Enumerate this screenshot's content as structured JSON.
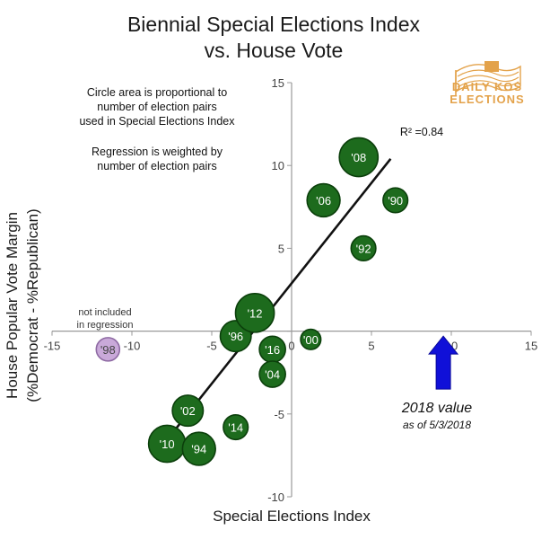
{
  "chart_data": {
    "type": "scatter",
    "title": [
      "Biennial Special Elections Index",
      "vs. House Vote"
    ],
    "xlabel": "Special Elections Index",
    "ylabel": [
      "House Popular Vote Margin",
      "(%Democrat - %Republican)"
    ],
    "xlim": [
      -15,
      15
    ],
    "ylim": [
      -10,
      15
    ],
    "x_ticks": [
      -15,
      -10,
      -5,
      0,
      5,
      10,
      15
    ],
    "y_ticks": [
      -10,
      -5,
      0,
      5,
      10,
      15
    ],
    "x_tick_labels": [
      "-15",
      "-10",
      "-5",
      "0",
      "5",
      "10",
      "15"
    ],
    "y_tick_labels": [
      "-10",
      "-5",
      "",
      "5",
      "10",
      "15"
    ],
    "points": [
      {
        "label": "'98",
        "x": -11.5,
        "y": -1.1,
        "weight": 4,
        "included": false
      },
      {
        "label": "'96",
        "x": -3.5,
        "y": -0.3,
        "weight": 7,
        "included": true
      },
      {
        "label": "'12",
        "x": -2.3,
        "y": 1.1,
        "weight": 11,
        "included": true
      },
      {
        "label": "'16",
        "x": -1.2,
        "y": -1.1,
        "weight": 5,
        "included": true
      },
      {
        "label": "'04",
        "x": -1.2,
        "y": -2.6,
        "weight": 5,
        "included": true
      },
      {
        "label": "'00",
        "x": 1.2,
        "y": -0.5,
        "weight": 3,
        "included": true
      },
      {
        "label": "'02",
        "x": -6.5,
        "y": -4.8,
        "weight": 7,
        "included": true
      },
      {
        "label": "'14",
        "x": -3.5,
        "y": -5.8,
        "weight": 4.5,
        "included": true
      },
      {
        "label": "'10",
        "x": -7.8,
        "y": -6.8,
        "weight": 10,
        "included": true
      },
      {
        "label": "'94",
        "x": -5.8,
        "y": -7.1,
        "weight": 8,
        "included": true
      },
      {
        "label": "'06",
        "x": 2.0,
        "y": 7.9,
        "weight": 8,
        "included": true
      },
      {
        "label": "'08",
        "x": 4.2,
        "y": 10.5,
        "weight": 11,
        "included": true
      },
      {
        "label": "'90",
        "x": 6.5,
        "y": 7.9,
        "weight": 4.5,
        "included": true
      },
      {
        "label": "'92",
        "x": 4.5,
        "y": 5.0,
        "weight": 4.5,
        "included": true
      }
    ],
    "regression_line": {
      "x1": -7.5,
      "y1": -6.2,
      "x2": 6.2,
      "y2": 10.4
    },
    "r_squared": "R² =0.84",
    "arrow": {
      "x": 9.5,
      "y_top": -0.3,
      "y_bottom": -3.5
    },
    "colors": {
      "included_fill": "#1d6b1d",
      "included_stroke": "#0b3f0b",
      "excluded_fill": "#c9a9d9",
      "excluded_stroke": "#8e6aa3",
      "arrow": "#1010d8",
      "line": "#111111",
      "axis": "#999999",
      "logo": "#e3a24a"
    }
  },
  "notes": {
    "circle_area": [
      "Circle area is proportional to",
      "number of election pairs",
      "used in Special Elections Index"
    ],
    "regression": [
      "Regression is weighted by",
      "number of election pairs"
    ],
    "not_included": [
      "not included",
      "in regression"
    ]
  },
  "callout": {
    "main": "2018 value",
    "sub": "as of 5/3/2018"
  },
  "logo": {
    "line1": "DAILY KOS",
    "line2": "ELECTIONS"
  }
}
